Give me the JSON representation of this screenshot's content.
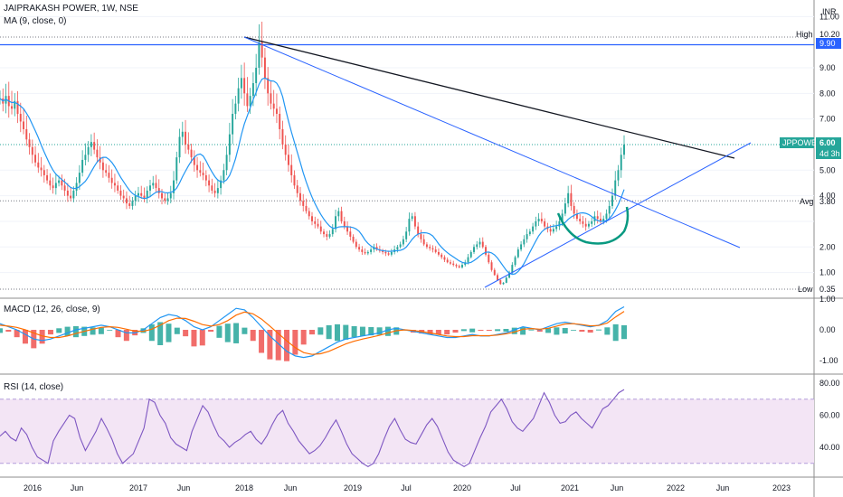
{
  "header": {
    "symbol_title": "JAIPRAKASH POWER, 1W, NSE",
    "ma_legend": "MA (9, close, 0)",
    "currency": "INR"
  },
  "macd": {
    "legend": "MACD (12, 26, close, 9)",
    "ticks": [
      "1.00",
      "0.00",
      "-1.00"
    ]
  },
  "rsi": {
    "legend": "RSI (14, close)",
    "ticks": [
      "80.00",
      "60.00",
      "40.00"
    ]
  },
  "price_scale": {
    "ticks": [
      "11.00",
      "9.00",
      "8.00",
      "7.00",
      "5.00",
      "4.00",
      "2.00",
      "1.00"
    ],
    "high_label": "High",
    "high_value": "10.20",
    "level_value": "9.90",
    "avg_label": "Avg",
    "avg_value": "3.80",
    "low_label": "Low",
    "low_value": "0.35",
    "last_ticker": "JPPOWER",
    "last_value": "6.00",
    "countdown": "4d 3h"
  },
  "time_axis": {
    "labels": [
      "2016",
      "Jun",
      "2017",
      "Jun",
      "2018",
      "Jun",
      "2019",
      "Jul",
      "2020",
      "Jul",
      "2021",
      "Jun",
      "2022",
      "Jun",
      "2023"
    ]
  },
  "colors": {
    "up": "#26a69a",
    "down": "#ef5350",
    "ma": "#2196f3",
    "trendline_blue": "#2962ff",
    "trendline_black": "#131722",
    "cup": "#089981",
    "macd_line": "#2196f3",
    "signal_line": "#ff6d00",
    "rsi_line": "#7e57c2",
    "rsi_band": "#f3e5f5"
  },
  "chart_data": [
    {
      "type": "candlestick",
      "title": "JAIPRAKASH POWER, 1W, NSE",
      "ylabel": "INR",
      "ylim": [
        0.35,
        11
      ],
      "weekly_close": [
        7.8,
        7.6,
        7.9,
        7.5,
        7.4,
        7.7,
        7.2,
        6.9,
        6.6,
        6.2,
        5.9,
        5.6,
        5.3,
        5.1,
        5.0,
        4.8,
        4.6,
        4.4,
        4.3,
        4.5,
        4.6,
        4.4,
        4.2,
        4.0,
        3.9,
        4.2,
        4.5,
        4.9,
        5.4,
        5.6,
        5.9,
        6.1,
        5.8,
        5.5,
        5.3,
        5.0,
        4.9,
        4.7,
        4.5,
        4.4,
        4.2,
        4.0,
        3.9,
        3.7,
        3.6,
        3.8,
        4.0,
        4.1,
        4.0,
        3.9,
        4.2,
        4.4,
        4.5,
        4.3,
        4.1,
        3.9,
        3.8,
        3.9,
        4.1,
        4.6,
        5.5,
        6.3,
        6.5,
        6.0,
        5.8,
        5.5,
        5.2,
        5.0,
        4.9,
        4.8,
        4.6,
        4.4,
        4.2,
        4.1,
        4.3,
        4.6,
        5.0,
        5.6,
        6.4,
        7.2,
        7.6,
        8.2,
        8.6,
        8.0,
        7.5,
        7.9,
        8.4,
        9.0,
        10.0,
        9.4,
        8.6,
        8.0,
        7.6,
        7.4,
        7.2,
        6.6,
        6.0,
        5.6,
        5.2,
        4.8,
        4.4,
        4.1,
        3.8,
        3.6,
        3.4,
        3.2,
        3.0,
        2.9,
        2.8,
        2.6,
        2.5,
        2.4,
        2.5,
        2.7,
        3.2,
        3.4,
        3.0,
        2.8,
        2.6,
        2.4,
        2.2,
        2.0,
        1.9,
        1.8,
        1.75,
        1.8,
        1.9,
        2.0,
        1.9,
        1.85,
        1.8,
        1.75,
        1.7,
        1.8,
        1.9,
        2.0,
        2.1,
        2.3,
        2.6,
        3.1,
        3.2,
        2.8,
        2.5,
        2.3,
        2.1,
        2.0,
        1.95,
        1.9,
        1.8,
        1.7,
        1.6,
        1.5,
        1.4,
        1.35,
        1.3,
        1.25,
        1.2,
        1.3,
        1.4,
        1.6,
        1.8,
        2.0,
        2.1,
        2.2,
        2.0,
        1.7,
        1.4,
        1.1,
        0.9,
        0.7,
        0.55,
        0.6,
        0.8,
        1.0,
        1.3,
        1.6,
        1.9,
        2.1,
        2.3,
        2.5,
        2.6,
        2.8,
        3.0,
        3.1,
        3.0,
        2.8,
        2.7,
        2.6,
        2.7,
        2.8,
        3.0,
        3.3,
        3.7,
        4.1,
        3.6,
        3.3,
        3.1,
        3.0,
        2.9,
        2.8,
        2.9,
        3.0,
        3.2,
        3.1,
        3.0,
        3.1,
        3.3,
        3.6,
        4.0,
        4.6,
        5.0,
        5.6,
        6.0
      ],
      "levels": {
        "high": 10.2,
        "average": 3.8,
        "low": 0.35,
        "last": 6.0,
        "horizontal": 9.9
      }
    },
    {
      "type": "line",
      "title": "MACD (12, 26, close, 9)",
      "ylim": [
        -1.2,
        1.2
      ],
      "series": [
        {
          "name": "MACD",
          "values": [
            0.2,
            0.1,
            0.0,
            -0.15,
            -0.3,
            -0.35,
            -0.3,
            -0.2,
            -0.1,
            0.0,
            0.05,
            0.1,
            0.15,
            0.1,
            0.0,
            -0.1,
            -0.1,
            0.0,
            0.2,
            0.4,
            0.5,
            0.45,
            0.3,
            0.1,
            0.0,
            0.1,
            0.3,
            0.5,
            0.7,
            0.65,
            0.4,
            0.1,
            -0.2,
            -0.45,
            -0.7,
            -0.85,
            -0.9,
            -0.85,
            -0.7,
            -0.55,
            -0.4,
            -0.3,
            -0.25,
            -0.2,
            -0.15,
            -0.1,
            0.0,
            0.05,
            0.0,
            -0.05,
            -0.1,
            -0.15,
            -0.2,
            -0.25,
            -0.25,
            -0.2,
            -0.15,
            -0.2,
            -0.2,
            -0.15,
            -0.1,
            0.0,
            0.1,
            0.05,
            0.0,
            0.1,
            0.2,
            0.25,
            0.2,
            0.15,
            0.1,
            0.15,
            0.3,
            0.6,
            0.75
          ]
        },
        {
          "name": "Signal",
          "values": [
            0.15,
            0.12,
            0.08,
            0.0,
            -0.1,
            -0.2,
            -0.25,
            -0.25,
            -0.2,
            -0.12,
            -0.05,
            0.02,
            0.08,
            0.1,
            0.08,
            0.02,
            -0.04,
            -0.05,
            0.02,
            0.15,
            0.3,
            0.38,
            0.37,
            0.28,
            0.17,
            0.12,
            0.17,
            0.3,
            0.48,
            0.58,
            0.52,
            0.35,
            0.12,
            -0.12,
            -0.36,
            -0.58,
            -0.74,
            -0.8,
            -0.78,
            -0.7,
            -0.58,
            -0.46,
            -0.37,
            -0.3,
            -0.24,
            -0.18,
            -0.1,
            -0.03,
            0.0,
            -0.02,
            -0.06,
            -0.1,
            -0.15,
            -0.2,
            -0.22,
            -0.22,
            -0.19,
            -0.19,
            -0.19,
            -0.17,
            -0.13,
            -0.07,
            0.02,
            0.04,
            0.02,
            0.05,
            0.12,
            0.19,
            0.2,
            0.17,
            0.13,
            0.14,
            0.22,
            0.42,
            0.6
          ]
        }
      ]
    },
    {
      "type": "line",
      "title": "RSI (14, close)",
      "ylim": [
        20,
        85
      ],
      "series": [
        {
          "name": "RSI",
          "values": [
            47,
            50,
            46,
            44,
            52,
            48,
            40,
            34,
            32,
            30,
            44,
            50,
            55,
            60,
            58,
            46,
            38,
            44,
            50,
            58,
            52,
            45,
            36,
            30,
            33,
            36,
            44,
            52,
            70,
            68,
            60,
            55,
            46,
            42,
            40,
            38,
            50,
            58,
            66,
            62,
            54,
            47,
            44,
            40,
            43,
            45,
            48,
            50,
            45,
            42,
            47,
            54,
            60,
            63,
            55,
            50,
            44,
            40,
            36,
            38,
            41,
            46,
            52,
            57,
            50,
            42,
            36,
            33,
            30,
            28,
            30,
            36,
            45,
            53,
            58,
            51,
            45,
            43,
            42,
            48,
            54,
            58,
            53,
            45,
            37,
            32,
            30,
            28,
            30,
            38,
            46,
            53,
            62,
            66,
            70,
            64,
            56,
            52,
            50,
            54,
            58,
            66,
            74,
            68,
            60,
            55,
            56,
            60,
            62,
            58,
            55,
            52,
            58,
            64,
            66,
            70,
            74,
            76
          ]
        }
      ],
      "bands": [
        30,
        70
      ]
    }
  ]
}
